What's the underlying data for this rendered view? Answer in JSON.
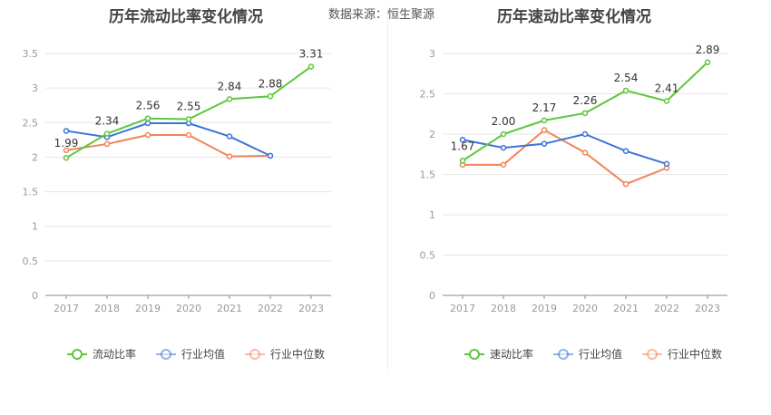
{
  "source_label": "数据来源：",
  "source_name": "恒生聚源",
  "colors": {
    "main": "#5cc73b",
    "avg": "#3b74d6",
    "median": "#f0855a",
    "grid": "#e6e6e6",
    "axis": "#999999",
    "label": "#333333"
  },
  "chart_data": [
    {
      "type": "line",
      "title": "历年流动比率变化情况",
      "categories": [
        "2017",
        "2018",
        "2019",
        "2020",
        "2021",
        "2022",
        "2023"
      ],
      "ylim": [
        0,
        3.5
      ],
      "yticks": [
        "0",
        "0.5",
        "1",
        "1.5",
        "2",
        "2.5",
        "3",
        "3.5"
      ],
      "series": [
        {
          "name": "流动比率",
          "values": [
            1.99,
            2.34,
            2.56,
            2.55,
            2.84,
            2.88,
            3.31
          ],
          "labels": [
            "1.99",
            "2.34",
            "2.56",
            "2.55",
            "2.84",
            "2.88",
            "3.31"
          ]
        },
        {
          "name": "行业均值",
          "values": [
            2.38,
            2.29,
            2.49,
            2.49,
            2.3,
            2.02,
            null
          ]
        },
        {
          "name": "行业中位数",
          "values": [
            2.1,
            2.19,
            2.32,
            2.32,
            2.01,
            2.02,
            null
          ]
        }
      ]
    },
    {
      "type": "line",
      "title": "历年速动比率变化情况",
      "categories": [
        "2017",
        "2018",
        "2019",
        "2020",
        "2021",
        "2022",
        "2023"
      ],
      "ylim": [
        0,
        3
      ],
      "yticks": [
        "0",
        "0.5",
        "1",
        "1.5",
        "2",
        "2.5",
        "3"
      ],
      "series": [
        {
          "name": "速动比率",
          "values": [
            1.67,
            2.0,
            2.17,
            2.26,
            2.54,
            2.41,
            2.89
          ],
          "labels": [
            "1.67",
            "2.00",
            "2.17",
            "2.26",
            "2.54",
            "2.41",
            "2.89"
          ]
        },
        {
          "name": "行业均值",
          "values": [
            1.93,
            1.83,
            1.88,
            2.0,
            1.79,
            1.63,
            null
          ]
        },
        {
          "name": "行业中位数",
          "values": [
            1.62,
            1.62,
            2.05,
            1.77,
            1.38,
            1.58,
            null
          ]
        }
      ]
    }
  ]
}
